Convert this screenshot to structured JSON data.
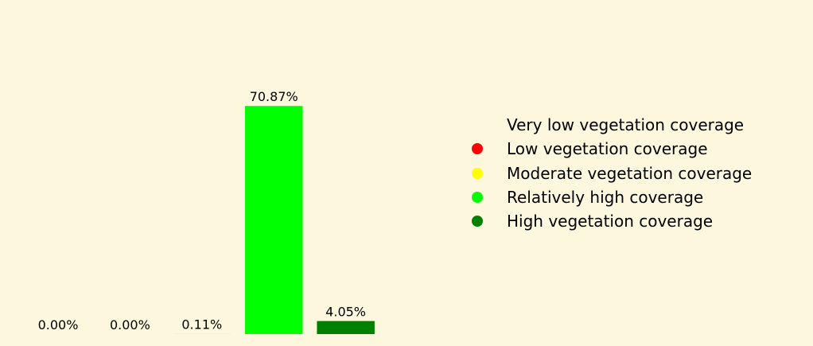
{
  "chart_data": {
    "type": "bar",
    "categories": [
      "Very low vegetation coverage",
      "Low vegetation coverage",
      "Moderate vegetation coverage",
      "Relatively high coverage",
      "High vegetation coverage"
    ],
    "values": [
      0.0,
      0.0,
      0.11,
      70.87,
      4.05
    ],
    "value_labels": [
      "0.00%",
      "0.00%",
      "0.11%",
      "70.87%",
      "4.05%"
    ],
    "colors": [
      "#fdf7dd",
      "#ff0000",
      "#ffff00",
      "#00ff00",
      "#008000"
    ],
    "legend": {
      "entries": [
        "Very low vegetation coverage",
        "Low vegetation coverage",
        "Moderate vegetation coverage",
        "Relatively high coverage",
        "High vegetation coverage"
      ],
      "placement": "right"
    },
    "ylim": [
      0,
      85
    ],
    "grid": false,
    "axes_visible": false,
    "title": "",
    "xlabel": "",
    "ylabel": ""
  }
}
